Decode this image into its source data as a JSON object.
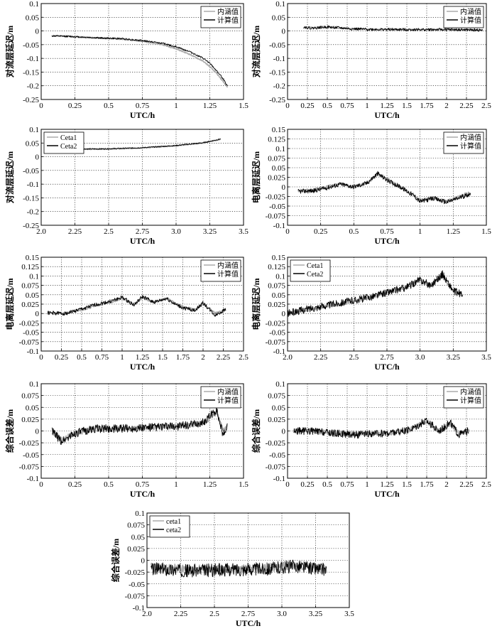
{
  "chart_data": [
    {
      "type": "line",
      "xlabel": "UTC/h",
      "ylabel": "对流层延迟/m",
      "xlim": [
        0,
        1.5
      ],
      "ylim": [
        -0.25,
        0.1
      ],
      "xticks": [
        "0",
        "0.25",
        "0.5",
        "0.75",
        "1",
        "1.25",
        "1.5"
      ],
      "yticks": [
        "0.1",
        "0.05",
        "0",
        "-0.05",
        "-0.1",
        "-0.15",
        "-0.2",
        "-0.25"
      ],
      "grid": true,
      "legend_position": "top-right",
      "x_range": [
        0.08,
        1.38
      ],
      "series": [
        {
          "name": "内涵值",
          "color": "#aaaaaa",
          "noise": 0.002,
          "seed": 11,
          "x": [
            0.08,
            0.2,
            0.4,
            0.6,
            0.75,
            0.9,
            1.0,
            1.1,
            1.2,
            1.25,
            1.3,
            1.35,
            1.38
          ],
          "y": [
            -0.018,
            -0.019,
            -0.025,
            -0.03,
            -0.038,
            -0.05,
            -0.065,
            -0.085,
            -0.11,
            -0.13,
            -0.155,
            -0.185,
            -0.205
          ]
        },
        {
          "name": "计算值",
          "color": "#000000",
          "noise": 0.003,
          "seed": 12,
          "x": [
            0.08,
            0.2,
            0.4,
            0.6,
            0.75,
            0.9,
            1.0,
            1.1,
            1.2,
            1.25,
            1.3,
            1.35,
            1.38
          ],
          "y": [
            -0.018,
            -0.02,
            -0.025,
            -0.028,
            -0.035,
            -0.045,
            -0.058,
            -0.075,
            -0.1,
            -0.118,
            -0.145,
            -0.175,
            -0.2
          ]
        }
      ]
    },
    {
      "type": "line",
      "xlabel": "UTC/h",
      "ylabel": "对流层延迟/m",
      "xlim": [
        0,
        2.5
      ],
      "ylim": [
        -0.25,
        0.1
      ],
      "xticks": [
        "0",
        "0.25",
        "0.5",
        "0.75",
        "1",
        "1.25",
        "1.5",
        "1.75",
        "2",
        "2.25",
        "2.5"
      ],
      "yticks": [
        "0.1",
        "0.05",
        "0",
        "-0.05",
        "-0.1",
        "-0.15",
        "-0.2",
        "-0.25"
      ],
      "grid": true,
      "legend_position": "top-right",
      "x_range": [
        0.2,
        2.45
      ],
      "series": [
        {
          "name": "内涵值",
          "color": "#aaaaaa",
          "noise": 0.002,
          "seed": 21,
          "x": [
            0.2,
            0.5,
            0.8,
            1.0,
            1.5,
            2.0,
            2.45
          ],
          "y": [
            0.012,
            0.013,
            0.008,
            0.006,
            0.005,
            0.005,
            0.003
          ]
        },
        {
          "name": "计算值",
          "color": "#000000",
          "noise": 0.005,
          "seed": 22,
          "x": [
            0.2,
            0.3,
            0.5,
            0.8,
            1.0,
            1.5,
            2.0,
            2.45
          ],
          "y": [
            0.015,
            0.01,
            0.015,
            0.008,
            0.006,
            0.005,
            0.005,
            0.003
          ]
        }
      ]
    },
    {
      "type": "line",
      "xlabel": "UTC/h",
      "ylabel": "对流层延迟/m",
      "xlim": [
        2.0,
        3.5
      ],
      "ylim": [
        -0.25,
        0.1
      ],
      "xticks": [
        "2.0",
        "2.25",
        "2.5",
        "2.75",
        "3.0",
        "3.25",
        "3.5"
      ],
      "yticks": [
        "0.1",
        "0.05",
        "0",
        "-0.05",
        "-0.1",
        "-0.15",
        "-0.2",
        "-0.25"
      ],
      "grid": true,
      "legend_position": "top-left",
      "x_range": [
        2.08,
        3.33
      ],
      "series": [
        {
          "name": "Ceta1",
          "color": "#aaaaaa",
          "noise": 0.0015,
          "seed": 31,
          "x": [
            2.08,
            2.25,
            2.5,
            2.75,
            3.0,
            3.2,
            3.33
          ],
          "y": [
            0.03,
            0.027,
            0.028,
            0.032,
            0.04,
            0.05,
            0.063
          ]
        },
        {
          "name": "Ceta2",
          "color": "#000000",
          "noise": 0.002,
          "seed": 32,
          "x": [
            2.08,
            2.25,
            2.5,
            2.75,
            3.0,
            3.2,
            3.33
          ],
          "y": [
            0.031,
            0.028,
            0.029,
            0.033,
            0.041,
            0.051,
            0.065
          ]
        }
      ]
    },
    {
      "type": "line",
      "xlabel": "UTC/h",
      "ylabel": "电离层延迟/m",
      "xlim": [
        0,
        1.5
      ],
      "ylim": [
        -0.1,
        0.15
      ],
      "xticks": [
        "0",
        "0.25",
        "0.5",
        "0.75",
        "1",
        "1.25",
        "1.5"
      ],
      "yticks": [
        "0.15",
        "0.125",
        "0.1",
        "0.075",
        "0.05",
        "0.025",
        "0",
        "-0.025",
        "-0.05",
        "-0.075",
        "-0.1"
      ],
      "grid": true,
      "legend_position": "top-right",
      "x_range": [
        0.08,
        1.38
      ],
      "series": [
        {
          "name": "内涵值",
          "color": "#aaaaaa",
          "noise": 0.004,
          "seed": 41,
          "x": [
            0.08,
            0.2,
            0.3,
            0.4,
            0.5,
            0.6,
            0.68,
            0.75,
            0.85,
            0.95,
            1.0,
            1.1,
            1.2,
            1.3,
            1.38
          ],
          "y": [
            -0.01,
            -0.008,
            0.0,
            0.008,
            0.0,
            0.01,
            0.033,
            0.018,
            0.0,
            -0.02,
            -0.035,
            -0.03,
            -0.038,
            -0.025,
            -0.015
          ]
        },
        {
          "name": "计算值",
          "color": "#000000",
          "noise": 0.006,
          "seed": 42,
          "x": [
            0.08,
            0.2,
            0.3,
            0.4,
            0.5,
            0.6,
            0.68,
            0.75,
            0.85,
            0.95,
            1.0,
            1.1,
            1.2,
            1.3,
            1.38
          ],
          "y": [
            -0.012,
            -0.01,
            -0.002,
            0.007,
            0.0,
            0.01,
            0.035,
            0.018,
            0.0,
            -0.022,
            -0.038,
            -0.03,
            -0.04,
            -0.028,
            -0.018
          ]
        }
      ]
    },
    {
      "type": "line",
      "xlabel": "UTC/h",
      "ylabel": "电离层延迟/m",
      "xlim": [
        0,
        2.5
      ],
      "ylim": [
        -0.1,
        0.15
      ],
      "xticks": [
        "0",
        "0.25",
        "0.5",
        "0.75",
        "1",
        "1.25",
        "1.5",
        "1.75",
        "2",
        "2.25",
        "2.5"
      ],
      "yticks": [
        "0.15",
        "0.125",
        "0.1",
        "0.075",
        "0.05",
        "0.025",
        "0",
        "-0.025",
        "-0.05",
        "-0.075",
        "-0.1"
      ],
      "grid": true,
      "legend_position": "top-right",
      "x_range": [
        0.08,
        2.28
      ],
      "series": [
        {
          "name": "内涵值",
          "color": "#aaaaaa",
          "noise": 0.003,
          "seed": 51,
          "x": [
            0.08,
            0.3,
            0.5,
            0.7,
            0.85,
            1.0,
            1.15,
            1.25,
            1.4,
            1.55,
            1.65,
            1.75,
            1.9,
            2.0,
            2.15,
            2.28
          ],
          "y": [
            0.0,
            0.0,
            0.01,
            0.022,
            0.03,
            0.04,
            0.025,
            0.042,
            0.03,
            0.04,
            0.028,
            0.018,
            0.01,
            0.028,
            0.0,
            0.01
          ]
        },
        {
          "name": "计算值",
          "color": "#000000",
          "noise": 0.005,
          "seed": 52,
          "x": [
            0.08,
            0.3,
            0.5,
            0.7,
            0.85,
            1.0,
            1.15,
            1.25,
            1.4,
            1.55,
            1.65,
            1.75,
            1.9,
            2.0,
            2.15,
            2.28
          ],
          "y": [
            0.002,
            0.0,
            0.012,
            0.025,
            0.032,
            0.043,
            0.022,
            0.045,
            0.03,
            0.04,
            0.025,
            0.015,
            0.008,
            0.028,
            -0.005,
            0.012
          ]
        }
      ]
    },
    {
      "type": "line",
      "xlabel": "UTC/h",
      "ylabel": "电离层延迟/m",
      "xlim": [
        2.0,
        3.5
      ],
      "ylim": [
        -0.1,
        0.15
      ],
      "xticks": [
        "2.0",
        "2.25",
        "2.5",
        "2.75",
        "3.0",
        "3.25",
        "3.5"
      ],
      "yticks": [
        "0.15",
        "0.125",
        "0.1",
        "0.075",
        "0.05",
        "0.025",
        "0",
        "-0.025",
        "-0.05",
        "-0.075",
        "-0.1"
      ],
      "grid": true,
      "legend_position": "top-left",
      "x_range": [
        2.0,
        3.32
      ],
      "series": [
        {
          "name": "Ceta1",
          "color": "#aaaaaa",
          "noise": 0.005,
          "seed": 61,
          "x": [
            2.0,
            2.15,
            2.3,
            2.45,
            2.6,
            2.75,
            2.9,
            3.0,
            3.08,
            3.17,
            3.25,
            3.32
          ],
          "y": [
            0.0,
            0.01,
            0.02,
            0.03,
            0.04,
            0.055,
            0.07,
            0.09,
            0.075,
            0.1,
            0.06,
            0.05
          ]
        },
        {
          "name": "Ceta2",
          "color": "#000000",
          "noise": 0.01,
          "seed": 62,
          "x": [
            2.0,
            2.15,
            2.3,
            2.45,
            2.6,
            2.75,
            2.9,
            3.0,
            3.08,
            3.17,
            3.25,
            3.32
          ],
          "y": [
            0.0,
            0.012,
            0.022,
            0.032,
            0.042,
            0.056,
            0.07,
            0.09,
            0.075,
            0.105,
            0.06,
            0.05
          ]
        }
      ]
    },
    {
      "type": "line",
      "xlabel": "UTC/h",
      "ylabel": "综合误差/m",
      "xlim": [
        0,
        1.5
      ],
      "ylim": [
        -0.1,
        0.1
      ],
      "xticks": [
        "0",
        "0.25",
        "0.5",
        "0.75",
        "1",
        "1.25",
        "1.5"
      ],
      "yticks": [
        "0.1",
        "0.075",
        "0.05",
        "0.025",
        "0",
        "-0.025",
        "-0.05",
        "-0.075",
        "-0.1"
      ],
      "grid": true,
      "legend_position": "top-right",
      "x_range": [
        0.08,
        1.38
      ],
      "series": [
        {
          "name": "内涵值",
          "color": "#aaaaaa",
          "noise": 0.006,
          "seed": 71,
          "x": [
            0.08,
            0.15,
            0.25,
            0.4,
            0.6,
            0.8,
            1.0,
            1.1,
            1.2,
            1.3,
            1.35,
            1.38
          ],
          "y": [
            0.0,
            -0.02,
            -0.005,
            0.005,
            0.005,
            0.008,
            0.01,
            0.012,
            0.015,
            0.04,
            0.0,
            0.01
          ]
        },
        {
          "name": "计算值",
          "color": "#000000",
          "noise": 0.009,
          "seed": 72,
          "x": [
            0.08,
            0.15,
            0.25,
            0.4,
            0.6,
            0.8,
            1.0,
            1.1,
            1.2,
            1.3,
            1.35,
            1.38
          ],
          "y": [
            0.0,
            -0.022,
            -0.005,
            0.005,
            0.005,
            0.008,
            0.01,
            0.012,
            0.018,
            0.045,
            -0.01,
            0.01
          ]
        }
      ]
    },
    {
      "type": "line",
      "xlabel": "UTC/h",
      "ylabel": "综合误差/m",
      "xlim": [
        0,
        2.5
      ],
      "ylim": [
        -0.1,
        0.1
      ],
      "xticks": [
        "0",
        "0.25",
        "0.5",
        "0.75",
        "1",
        "1.25",
        "1.5",
        "1.75",
        "2",
        "2.25",
        "2.5"
      ],
      "yticks": [
        "0.1",
        "0.075",
        "0.05",
        "0.025",
        "0",
        "-0.025",
        "-0.05",
        "-0.075",
        "-0.1"
      ],
      "grid": true,
      "legend_position": "top-right",
      "x_range": [
        0.08,
        2.28
      ],
      "series": [
        {
          "name": "内涵值",
          "color": "#aaaaaa",
          "noise": 0.005,
          "seed": 81,
          "x": [
            0.08,
            0.3,
            0.6,
            0.9,
            1.2,
            1.5,
            1.75,
            1.9,
            2.05,
            2.15,
            2.28
          ],
          "y": [
            0.0,
            0.0,
            -0.005,
            -0.005,
            -0.005,
            0.0,
            0.02,
            0.0,
            0.015,
            -0.005,
            0.0
          ]
        },
        {
          "name": "计算值",
          "color": "#000000",
          "noise": 0.008,
          "seed": 82,
          "x": [
            0.08,
            0.3,
            0.6,
            0.9,
            1.2,
            1.5,
            1.75,
            1.9,
            2.05,
            2.15,
            2.28
          ],
          "y": [
            0.0,
            0.0,
            -0.005,
            -0.008,
            -0.005,
            0.0,
            0.022,
            0.0,
            0.018,
            -0.008,
            0.0
          ]
        }
      ]
    },
    {
      "type": "line",
      "xlabel": "UTC/h",
      "ylabel": "综合误差/m",
      "xlim": [
        2.0,
        3.5
      ],
      "ylim": [
        -0.1,
        0.1
      ],
      "xticks": [
        "2.0",
        "2.25",
        "2.5",
        "2.75",
        "3.0",
        "3.25",
        "3.5"
      ],
      "yticks": [
        "0.1",
        "0.075",
        "0.05",
        "0.025",
        "0",
        "-0.025",
        "-0.05",
        "-0.075",
        "-0.1"
      ],
      "grid": true,
      "legend_position": "top-left",
      "x_range": [
        2.03,
        3.33
      ],
      "series": [
        {
          "name": "ceta1",
          "color": "#aaaaaa",
          "noise": 0.01,
          "seed": 91,
          "x": [
            2.03,
            2.3,
            2.6,
            2.9,
            3.1,
            3.33
          ],
          "y": [
            -0.015,
            -0.02,
            -0.02,
            -0.015,
            -0.01,
            -0.02
          ]
        },
        {
          "name": "ceta2",
          "color": "#000000",
          "noise": 0.014,
          "seed": 92,
          "x": [
            2.03,
            2.3,
            2.6,
            2.9,
            3.1,
            3.33
          ],
          "y": [
            -0.018,
            -0.022,
            -0.02,
            -0.018,
            -0.012,
            -0.02
          ]
        }
      ]
    }
  ]
}
